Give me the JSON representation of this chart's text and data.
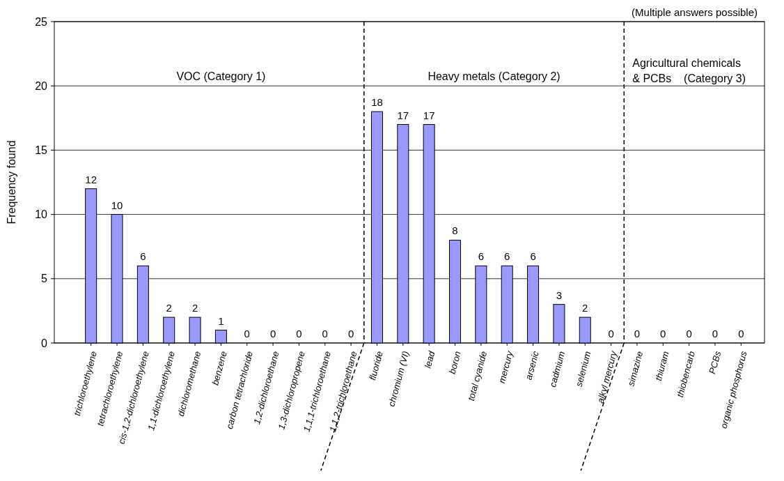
{
  "chart_data": {
    "type": "bar",
    "ylabel": "Frequency found",
    "categories": [
      "trichloroethylene",
      "tetrachloroethylene",
      "cis-1,2-dichloroethylene",
      "1,1-dichloroethylene",
      "dichloromethane",
      "benzene",
      "carbon tetrachloride",
      "1,2-dichloroethane",
      "1,3-dichloropropene",
      "1,1,1-trichloroethane",
      "1,1,2-trichloroethane",
      "fluoride",
      "chromium (VI)",
      "lead",
      "boron",
      "total cyanide",
      "mercury",
      "arsenic",
      "cadmium",
      "selenium",
      "alkyl mercury",
      "simazine",
      "thiuram",
      "thiobencarb",
      "PCBs",
      "organic phosphorus"
    ],
    "values": [
      12,
      10,
      6,
      2,
      2,
      1,
      0,
      0,
      0,
      0,
      0,
      18,
      17,
      17,
      8,
      6,
      6,
      6,
      3,
      2,
      0,
      0,
      0,
      0,
      0,
      0
    ],
    "color": "#9999ff",
    "ylim": [
      0,
      25
    ],
    "yticks": [
      0,
      5,
      10,
      15,
      20,
      25
    ],
    "grid": "y",
    "data_labels": true,
    "annotations": [
      "(Multiple answers possible)",
      "VOC (Category 1)",
      "Heavy metals (Category 2)",
      "Agricultural chemicals\n& PCBs    (Category 3)"
    ]
  }
}
